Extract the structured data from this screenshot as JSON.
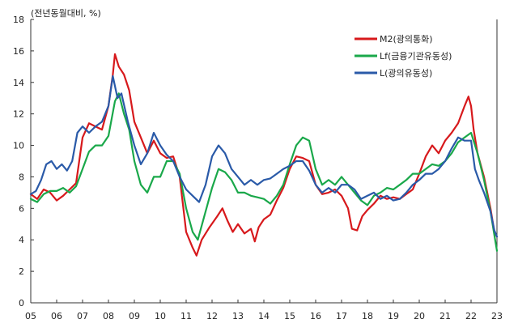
{
  "chart_data": {
    "type": "line",
    "unit_label": "(전년동월대비, %)",
    "title": "",
    "xlabel": "",
    "ylabel": "",
    "ylim": [
      0,
      18
    ],
    "xlim": [
      2005.0,
      2023.0
    ],
    "y_ticks": [
      0,
      2,
      4,
      6,
      8,
      10,
      12,
      14,
      16,
      18
    ],
    "x_ticks": [
      {
        "value": 2005,
        "label": "05"
      },
      {
        "value": 2006,
        "label": "06"
      },
      {
        "value": 2007,
        "label": "07"
      },
      {
        "value": 2008,
        "label": "08"
      },
      {
        "value": 2009,
        "label": "09"
      },
      {
        "value": 2010,
        "label": "10"
      },
      {
        "value": 2011,
        "label": "11"
      },
      {
        "value": 2012,
        "label": "12"
      },
      {
        "value": 2013,
        "label": "13"
      },
      {
        "value": 2014,
        "label": "14"
      },
      {
        "value": 2015,
        "label": "15"
      },
      {
        "value": 2016,
        "label": "16"
      },
      {
        "value": 2017,
        "label": "17"
      },
      {
        "value": 2018,
        "label": "18"
      },
      {
        "value": 2019,
        "label": "19"
      },
      {
        "value": 2020,
        "label": "20"
      },
      {
        "value": 2021,
        "label": "21"
      },
      {
        "value": 2022,
        "label": "22"
      },
      {
        "value": 2023,
        "label": "23"
      }
    ],
    "legend_position": "top-right",
    "series": [
      {
        "name": "M2(광의통화)",
        "color": "#d7191c",
        "points": [
          [
            2005.0,
            6.9
          ],
          [
            2005.25,
            6.6
          ],
          [
            2005.5,
            7.2
          ],
          [
            2005.75,
            7.0
          ],
          [
            2006.0,
            6.5
          ],
          [
            2006.25,
            6.8
          ],
          [
            2006.5,
            7.2
          ],
          [
            2006.75,
            7.6
          ],
          [
            2007.0,
            10.5
          ],
          [
            2007.25,
            11.4
          ],
          [
            2007.5,
            11.2
          ],
          [
            2007.75,
            11.0
          ],
          [
            2008.0,
            12.5
          ],
          [
            2008.17,
            14.5
          ],
          [
            2008.25,
            15.8
          ],
          [
            2008.4,
            15.0
          ],
          [
            2008.6,
            14.5
          ],
          [
            2008.8,
            13.5
          ],
          [
            2009.0,
            11.5
          ],
          [
            2009.25,
            10.5
          ],
          [
            2009.5,
            9.5
          ],
          [
            2009.75,
            10.3
          ],
          [
            2010.0,
            9.5
          ],
          [
            2010.25,
            9.2
          ],
          [
            2010.5,
            9.3
          ],
          [
            2010.75,
            8.0
          ],
          [
            2011.0,
            4.5
          ],
          [
            2011.25,
            3.5
          ],
          [
            2011.4,
            3.0
          ],
          [
            2011.6,
            4.0
          ],
          [
            2011.9,
            4.8
          ],
          [
            2012.2,
            5.5
          ],
          [
            2012.4,
            6.0
          ],
          [
            2012.6,
            5.2
          ],
          [
            2012.8,
            4.5
          ],
          [
            2013.0,
            5.0
          ],
          [
            2013.25,
            4.4
          ],
          [
            2013.5,
            4.7
          ],
          [
            2013.65,
            3.9
          ],
          [
            2013.8,
            4.8
          ],
          [
            2014.0,
            5.3
          ],
          [
            2014.25,
            5.6
          ],
          [
            2014.5,
            6.5
          ],
          [
            2014.75,
            7.3
          ],
          [
            2015.0,
            8.5
          ],
          [
            2015.25,
            9.3
          ],
          [
            2015.5,
            9.2
          ],
          [
            2015.75,
            9.0
          ],
          [
            2016.0,
            7.5
          ],
          [
            2016.25,
            6.9
          ],
          [
            2016.5,
            7.0
          ],
          [
            2016.75,
            7.2
          ],
          [
            2017.0,
            6.8
          ],
          [
            2017.25,
            6.0
          ],
          [
            2017.4,
            4.7
          ],
          [
            2017.6,
            4.6
          ],
          [
            2017.8,
            5.5
          ],
          [
            2018.0,
            5.9
          ],
          [
            2018.25,
            6.3
          ],
          [
            2018.5,
            6.8
          ],
          [
            2018.75,
            6.6
          ],
          [
            2019.0,
            6.7
          ],
          [
            2019.25,
            6.6
          ],
          [
            2019.5,
            6.9
          ],
          [
            2019.75,
            7.2
          ],
          [
            2020.0,
            8.2
          ],
          [
            2020.25,
            9.3
          ],
          [
            2020.5,
            10.0
          ],
          [
            2020.75,
            9.5
          ],
          [
            2021.0,
            10.3
          ],
          [
            2021.25,
            10.8
          ],
          [
            2021.5,
            11.4
          ],
          [
            2021.75,
            12.5
          ],
          [
            2021.9,
            13.1
          ],
          [
            2022.0,
            12.5
          ],
          [
            2022.1,
            11.0
          ],
          [
            2022.25,
            9.5
          ],
          [
            2022.5,
            8.0
          ],
          [
            2022.75,
            6.0
          ],
          [
            2022.9,
            4.5
          ],
          [
            2023.0,
            4.2
          ]
        ]
      },
      {
        "name": "Lf(금융기관유동성)",
        "color": "#1aa84a",
        "points": [
          [
            2005.0,
            6.6
          ],
          [
            2005.25,
            6.4
          ],
          [
            2005.5,
            6.9
          ],
          [
            2005.75,
            7.1
          ],
          [
            2006.0,
            7.1
          ],
          [
            2006.25,
            7.3
          ],
          [
            2006.5,
            7.0
          ],
          [
            2006.75,
            7.4
          ],
          [
            2007.0,
            8.5
          ],
          [
            2007.25,
            9.6
          ],
          [
            2007.5,
            10.0
          ],
          [
            2007.75,
            10.0
          ],
          [
            2008.0,
            10.6
          ],
          [
            2008.25,
            12.8
          ],
          [
            2008.4,
            13.3
          ],
          [
            2008.6,
            12.0
          ],
          [
            2008.8,
            11.0
          ],
          [
            2009.0,
            9.0
          ],
          [
            2009.25,
            7.5
          ],
          [
            2009.5,
            7.0
          ],
          [
            2009.75,
            8.0
          ],
          [
            2010.0,
            8.0
          ],
          [
            2010.25,
            9.0
          ],
          [
            2010.5,
            9.0
          ],
          [
            2010.75,
            8.2
          ],
          [
            2011.0,
            6.0
          ],
          [
            2011.25,
            4.5
          ],
          [
            2011.45,
            4.0
          ],
          [
            2011.7,
            5.5
          ],
          [
            2012.0,
            7.3
          ],
          [
            2012.25,
            8.5
          ],
          [
            2012.5,
            8.3
          ],
          [
            2012.75,
            7.8
          ],
          [
            2013.0,
            7.0
          ],
          [
            2013.25,
            7.0
          ],
          [
            2013.5,
            6.8
          ],
          [
            2013.75,
            6.7
          ],
          [
            2014.0,
            6.6
          ],
          [
            2014.25,
            6.3
          ],
          [
            2014.5,
            6.8
          ],
          [
            2014.75,
            7.5
          ],
          [
            2015.0,
            8.8
          ],
          [
            2015.25,
            10.0
          ],
          [
            2015.5,
            10.5
          ],
          [
            2015.75,
            10.3
          ],
          [
            2016.0,
            8.5
          ],
          [
            2016.25,
            7.5
          ],
          [
            2016.5,
            7.8
          ],
          [
            2016.75,
            7.5
          ],
          [
            2017.0,
            8.0
          ],
          [
            2017.25,
            7.5
          ],
          [
            2017.5,
            7.0
          ],
          [
            2017.75,
            6.5
          ],
          [
            2018.0,
            6.2
          ],
          [
            2018.25,
            6.8
          ],
          [
            2018.5,
            7.0
          ],
          [
            2018.75,
            7.3
          ],
          [
            2019.0,
            7.2
          ],
          [
            2019.25,
            7.5
          ],
          [
            2019.5,
            7.8
          ],
          [
            2019.75,
            8.2
          ],
          [
            2020.0,
            8.2
          ],
          [
            2020.25,
            8.5
          ],
          [
            2020.5,
            8.8
          ],
          [
            2020.75,
            8.7
          ],
          [
            2021.0,
            9.0
          ],
          [
            2021.25,
            9.5
          ],
          [
            2021.5,
            10.2
          ],
          [
            2021.75,
            10.5
          ],
          [
            2022.0,
            10.8
          ],
          [
            2022.25,
            9.5
          ],
          [
            2022.5,
            7.8
          ],
          [
            2022.75,
            5.8
          ],
          [
            2022.9,
            4.3
          ],
          [
            2023.0,
            3.3
          ]
        ]
      },
      {
        "name": "L(광의유동성)",
        "color": "#2a5aa8",
        "points": [
          [
            2005.0,
            6.9
          ],
          [
            2005.2,
            7.1
          ],
          [
            2005.4,
            7.8
          ],
          [
            2005.6,
            8.8
          ],
          [
            2005.8,
            9.0
          ],
          [
            2006.0,
            8.5
          ],
          [
            2006.2,
            8.8
          ],
          [
            2006.4,
            8.4
          ],
          [
            2006.6,
            9.0
          ],
          [
            2006.8,
            10.8
          ],
          [
            2007.0,
            11.2
          ],
          [
            2007.25,
            10.8
          ],
          [
            2007.5,
            11.2
          ],
          [
            2007.75,
            11.5
          ],
          [
            2008.0,
            12.5
          ],
          [
            2008.17,
            14.4
          ],
          [
            2008.35,
            13.0
          ],
          [
            2008.5,
            13.3
          ],
          [
            2008.75,
            11.5
          ],
          [
            2009.0,
            10.0
          ],
          [
            2009.25,
            8.8
          ],
          [
            2009.5,
            9.5
          ],
          [
            2009.75,
            10.8
          ],
          [
            2010.0,
            10.0
          ],
          [
            2010.25,
            9.4
          ],
          [
            2010.5,
            9.0
          ],
          [
            2010.75,
            8.0
          ],
          [
            2011.0,
            7.2
          ],
          [
            2011.25,
            6.8
          ],
          [
            2011.5,
            6.4
          ],
          [
            2011.75,
            7.5
          ],
          [
            2012.0,
            9.3
          ],
          [
            2012.25,
            10.0
          ],
          [
            2012.5,
            9.5
          ],
          [
            2012.75,
            8.5
          ],
          [
            2013.0,
            8.0
          ],
          [
            2013.25,
            7.5
          ],
          [
            2013.5,
            7.8
          ],
          [
            2013.75,
            7.5
          ],
          [
            2014.0,
            7.8
          ],
          [
            2014.25,
            7.9
          ],
          [
            2014.5,
            8.2
          ],
          [
            2014.75,
            8.5
          ],
          [
            2015.0,
            8.7
          ],
          [
            2015.25,
            9.0
          ],
          [
            2015.5,
            9.0
          ],
          [
            2015.75,
            8.4
          ],
          [
            2016.0,
            7.5
          ],
          [
            2016.25,
            7.0
          ],
          [
            2016.5,
            7.3
          ],
          [
            2016.75,
            7.0
          ],
          [
            2017.0,
            7.5
          ],
          [
            2017.25,
            7.5
          ],
          [
            2017.5,
            7.2
          ],
          [
            2017.75,
            6.6
          ],
          [
            2018.0,
            6.8
          ],
          [
            2018.25,
            7.0
          ],
          [
            2018.5,
            6.6
          ],
          [
            2018.75,
            6.8
          ],
          [
            2019.0,
            6.5
          ],
          [
            2019.25,
            6.6
          ],
          [
            2019.5,
            7.0
          ],
          [
            2019.75,
            7.5
          ],
          [
            2020.0,
            7.8
          ],
          [
            2020.25,
            8.2
          ],
          [
            2020.5,
            8.2
          ],
          [
            2020.75,
            8.5
          ],
          [
            2021.0,
            9.0
          ],
          [
            2021.25,
            9.8
          ],
          [
            2021.5,
            10.5
          ],
          [
            2021.75,
            10.3
          ],
          [
            2022.0,
            10.3
          ],
          [
            2022.15,
            8.5
          ],
          [
            2022.3,
            7.8
          ],
          [
            2022.5,
            7.0
          ],
          [
            2022.75,
            5.8
          ],
          [
            2022.9,
            4.6
          ],
          [
            2023.0,
            4.2
          ]
        ]
      }
    ]
  }
}
